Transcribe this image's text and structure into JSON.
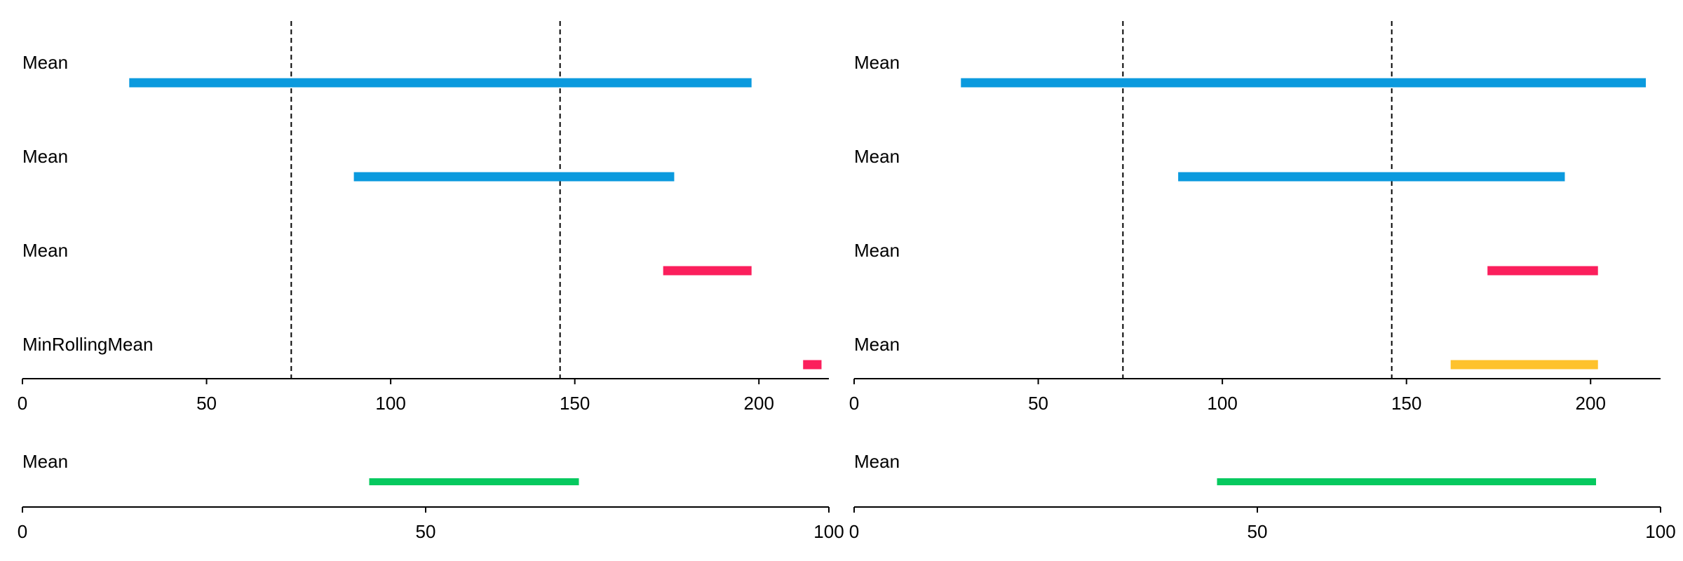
{
  "chart_data": [
    {
      "type": "interval",
      "panel": "top-left",
      "xlim": [
        0,
        219
      ],
      "xticks": [
        "0",
        "50",
        "100",
        "150",
        "200"
      ],
      "reference_lines": [
        73,
        146
      ],
      "intervals": [
        {
          "label": "Mean",
          "start": 29,
          "end": 198,
          "color": "#0b9ade"
        },
        {
          "label": "Mean",
          "start": 90,
          "end": 177,
          "color": "#0b9ade"
        },
        {
          "label": "Mean",
          "start": 174,
          "end": 198,
          "color": "#fb1f5c"
        },
        {
          "label": "MinRollingMean",
          "start": 212,
          "end": 217,
          "color": "#fb1f5c"
        }
      ]
    },
    {
      "type": "interval",
      "panel": "top-right",
      "xlim": [
        0,
        219
      ],
      "xticks": [
        "0",
        "50",
        "100",
        "150",
        "200"
      ],
      "reference_lines": [
        73,
        146
      ],
      "intervals": [
        {
          "label": "Mean",
          "start": 29,
          "end": 215,
          "color": "#0b9ade"
        },
        {
          "label": "Mean",
          "start": 88,
          "end": 193,
          "color": "#0b9ade"
        },
        {
          "label": "Mean",
          "start": 172,
          "end": 202,
          "color": "#fb1f5c"
        },
        {
          "label": "Mean",
          "start": 162,
          "end": 202,
          "color": "#fec22c"
        }
      ]
    },
    {
      "type": "interval",
      "panel": "bottom-left",
      "xlim": [
        0,
        100
      ],
      "xticks": [
        "0",
        "50",
        "100"
      ],
      "reference_lines": [],
      "intervals": [
        {
          "label": "Mean",
          "start": 43,
          "end": 69,
          "color": "#06c95f"
        }
      ]
    },
    {
      "type": "interval",
      "panel": "bottom-right",
      "xlim": [
        0,
        100
      ],
      "xticks": [
        "0",
        "50",
        "100"
      ],
      "reference_lines": [],
      "intervals": [
        {
          "label": "Mean",
          "start": 45,
          "end": 92,
          "color": "#06c95f"
        }
      ]
    }
  ]
}
